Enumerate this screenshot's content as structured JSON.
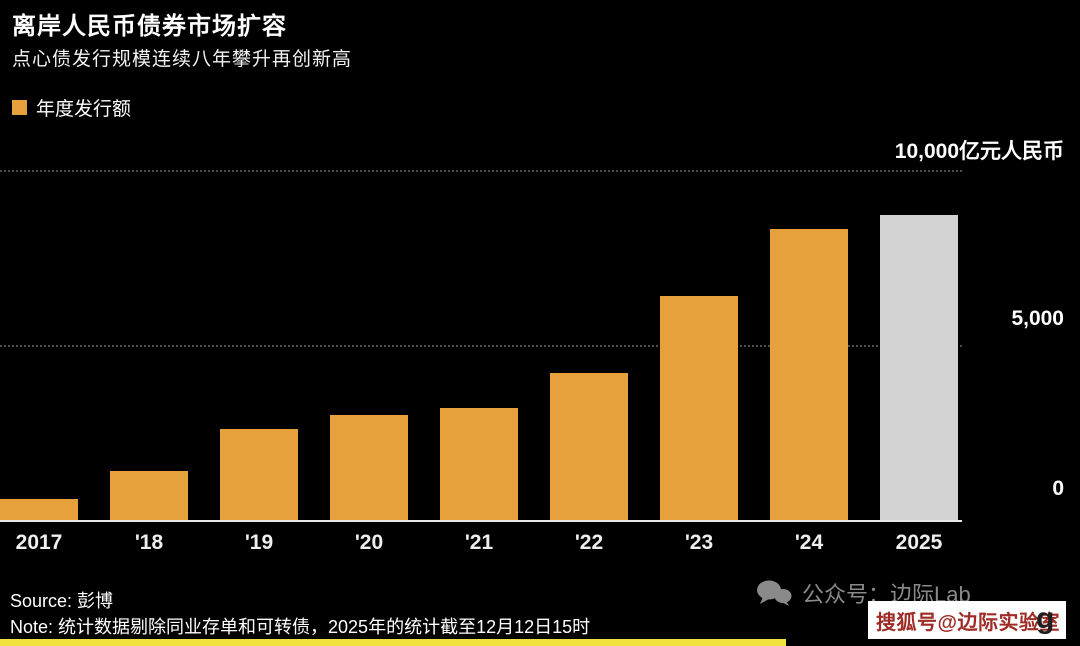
{
  "header": {
    "title": "离岸人民币债券市场扩容",
    "subtitle": "点心债发行规模连续八年攀升再创新高",
    "legend_label": "年度发行额"
  },
  "colors": {
    "background": "#000000",
    "bar_orange": "#E6A13C",
    "bar_gray": "#D2D2D2",
    "gridline_gray": "#4d4d4d",
    "highlight_yellow": "#F2E33C",
    "watermark_gray": "#8a8a8a",
    "sohu_red": "#9E2B25"
  },
  "chart_data": {
    "type": "bar",
    "title": "离岸人民币债券市场扩容",
    "subtitle": "点心债发行规模连续八年攀升再创新高",
    "legend": [
      "年度发行额"
    ],
    "categories": [
      "2017",
      "'18",
      "'19",
      "'20",
      "'21",
      "'22",
      "'23",
      "'24",
      "2025"
    ],
    "values": [
      600,
      1400,
      2600,
      3000,
      3200,
      4200,
      6400,
      8300,
      8700
    ],
    "unit": "亿元人民币",
    "ylim": [
      0,
      10000
    ],
    "yticks": [
      0,
      5000,
      10000
    ],
    "ytick_labels": [
      "0",
      "5,000",
      "10,000亿元人民币"
    ],
    "grid": "dotted horizontal lines at 5,000 and 10,000; solid baseline at 0",
    "legend_position": "top-left",
    "bar_color_note": "all bars orange except final 2025 bar which is gray (partial-year data)"
  },
  "axis": {
    "label_10000": "10,000亿元人民币",
    "label_5000": "5,000",
    "label_0": "0"
  },
  "footer": {
    "source": "Source: 彭博",
    "note": "Note: 统计数据剔除同业存单和可转债，2025年的统计截至12月12日15时"
  },
  "watermarks": {
    "wechat": "公众号：边际Lab",
    "sohu": "搜狐号@边际实验室",
    "bloomberg_partial": "g"
  }
}
